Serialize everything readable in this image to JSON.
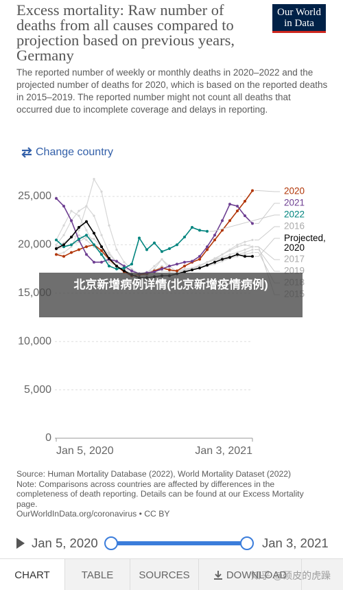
{
  "header": {
    "title": "Excess mortality: Raw number of deaths from all causes compared to projection based on previous years, Germany",
    "subtitle": "The reported number of weekly or monthly deaths in 2020–2022 and the projected number of deaths for 2020, which is based on the reported deaths in 2015–2019. The reported number might not count all deaths that occurred due to incomplete coverage and delays in reporting.",
    "logo": "Our World in Data",
    "change_country": "Change country"
  },
  "chart_data": {
    "type": "line",
    "categories": [
      "Jan 5, 2020",
      null,
      null,
      null,
      null,
      null,
      null,
      null,
      null,
      null,
      null,
      null,
      null,
      null,
      null,
      null,
      null,
      null,
      null,
      null,
      null,
      null,
      null,
      null,
      null,
      null,
      "Jan 3, 2021"
    ],
    "ylim": [
      0,
      25000
    ],
    "yticks": [
      0,
      {
        "value": 5000,
        "label": "5,000"
      },
      {
        "value": 10000,
        "label": "10,000"
      },
      {
        "value": 15000,
        "label": "15,000"
      },
      {
        "value": 20000,
        "label": "20,000"
      },
      {
        "value": 25000,
        "label": "25,000"
      }
    ],
    "grid": true,
    "series": [
      {
        "name": "2020",
        "color": "#b13507",
        "values": [
          19000,
          18800,
          19200,
          19500,
          19800,
          20000,
          19400,
          18500,
          17800,
          17200,
          16800,
          16900,
          17000,
          17300,
          17600,
          17400,
          17300,
          17800,
          18200,
          18500,
          19500,
          20500,
          21500,
          22500,
          23500,
          24500,
          25600
        ]
      },
      {
        "name": "2021",
        "color": "#6d3e91",
        "values": [
          24800,
          24000,
          22500,
          20500,
          19000,
          18200,
          18200,
          18500,
          18300,
          17800,
          17300,
          17000,
          17100,
          17200,
          17500,
          17800,
          18000,
          18200,
          18300,
          18800,
          19800,
          21000,
          22500,
          24200,
          24000,
          23000,
          22200
        ]
      },
      {
        "name": "2022",
        "color": "#00847e",
        "values": [
          20500,
          19800,
          20000,
          20600,
          21000,
          20000,
          19000,
          17800,
          17500,
          17600,
          18000,
          20700,
          19500,
          20200,
          19300,
          19600,
          20000,
          20800,
          21800,
          21500,
          21400,
          null,
          null,
          null,
          null,
          null,
          null
        ]
      },
      {
        "name": "2016",
        "color": "#d6d6d6",
        "values": [
          19500,
          19800,
          20000,
          20300,
          20800,
          20600,
          19800,
          19000,
          18200,
          17800,
          17300,
          17000,
          17000,
          17200,
          17000,
          16900,
          17000,
          17300,
          17500,
          17800,
          18200,
          18500,
          19000,
          19500,
          20000,
          20300,
          20500
        ]
      },
      {
        "name": "Projected, 2020",
        "color": "#000000",
        "values": [
          19600,
          20000,
          20800,
          21800,
          22400,
          21200,
          19800,
          18600,
          17800,
          17300,
          16900,
          16600,
          16600,
          16700,
          16800,
          16800,
          17000,
          17200,
          17400,
          17600,
          17900,
          18200,
          18500,
          18700,
          19000,
          18800,
          18800
        ]
      },
      {
        "name": "2017",
        "color": "#d6d6d6",
        "values": [
          20500,
          22000,
          23500,
          23000,
          21500,
          20000,
          19000,
          18200,
          17800,
          17400,
          17000,
          17000,
          17200,
          17400,
          17300,
          17200,
          17300,
          17500,
          17600,
          17800,
          18200,
          18600,
          19000,
          19400,
          19800,
          20000,
          19800
        ]
      },
      {
        "name": "2019",
        "color": "#d6d6d6",
        "values": [
          19800,
          20200,
          20800,
          21000,
          20500,
          19800,
          19200,
          18500,
          17800,
          17400,
          17000,
          16900,
          17100,
          17300,
          17800,
          17400,
          17200,
          17300,
          17500,
          17800,
          18200,
          18400,
          18600,
          18800,
          19000,
          19200,
          19500
        ]
      },
      {
        "name": "2018",
        "color": "#d6d6d6",
        "values": [
          19000,
          19200,
          19800,
          21500,
          24000,
          26800,
          25500,
          22000,
          19500,
          18200,
          17500,
          17000,
          17100,
          17800,
          18500,
          17500,
          17200,
          17300,
          17400,
          17600,
          17800,
          18000,
          18300,
          18600,
          18800,
          19000,
          19200
        ]
      },
      {
        "name": "2015",
        "color": "#d6d6d6",
        "values": [
          20000,
          21000,
          22500,
          23500,
          24000,
          23000,
          21000,
          19200,
          18200,
          17600,
          17200,
          17000,
          16800,
          17500,
          18500,
          17800,
          17200,
          17400,
          17600,
          17900,
          18200,
          18500,
          18700,
          19000,
          19200,
          19500,
          19800
        ]
      }
    ]
  },
  "footer": {
    "source": "Source: Human Mortality Database (2022), World Mortality Dataset (2022)",
    "note": "Note: Comparisons across countries are affected by differences in the completeness of death reporting. Details can be found at our Excess Mortality page.",
    "url": "OurWorldInData.org/coronavirus • CC BY"
  },
  "timeline": {
    "start": "Jan 5, 2020",
    "end": "Jan 3, 2021"
  },
  "tabs": [
    "CHART",
    "TABLE",
    "SOURCES",
    "DOWNLOAD"
  ],
  "overlay_text": "北京新增病例详情(北京新增疫情病例)",
  "watermark": "知乎 @硕皮的虎躁"
}
